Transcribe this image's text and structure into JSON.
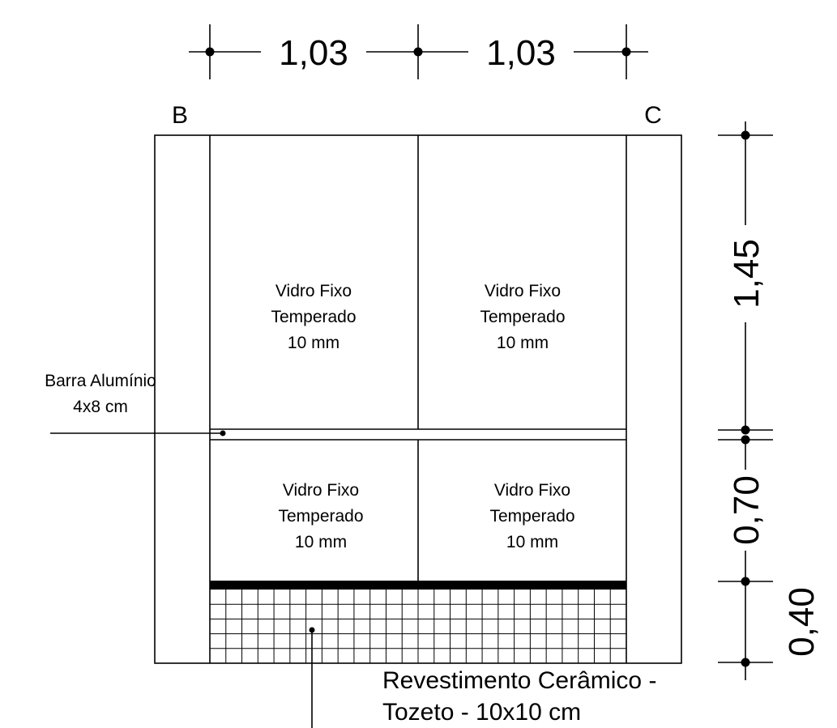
{
  "dimensions": {
    "top": [
      "1,03",
      "1,03"
    ],
    "right": [
      "1,45",
      "0,70",
      "0,40"
    ]
  },
  "axes": {
    "left": "B",
    "right": "C"
  },
  "panels": [
    {
      "lines": [
        "Vidro Fixo",
        "Temperado",
        "10 mm"
      ]
    },
    {
      "lines": [
        "Vidro Fixo",
        "Temperado",
        "10 mm"
      ]
    },
    {
      "lines": [
        "Vidro Fixo",
        "Temperado",
        "10 mm"
      ]
    },
    {
      "lines": [
        "Vidro Fixo",
        "Temperado",
        "10 mm"
      ]
    }
  ],
  "callouts": {
    "bar": [
      "Barra Alumínio",
      "4x8 cm"
    ],
    "tile": [
      "Revestimento Cerâmico -",
      "Tozeto - 10x10 cm"
    ]
  }
}
